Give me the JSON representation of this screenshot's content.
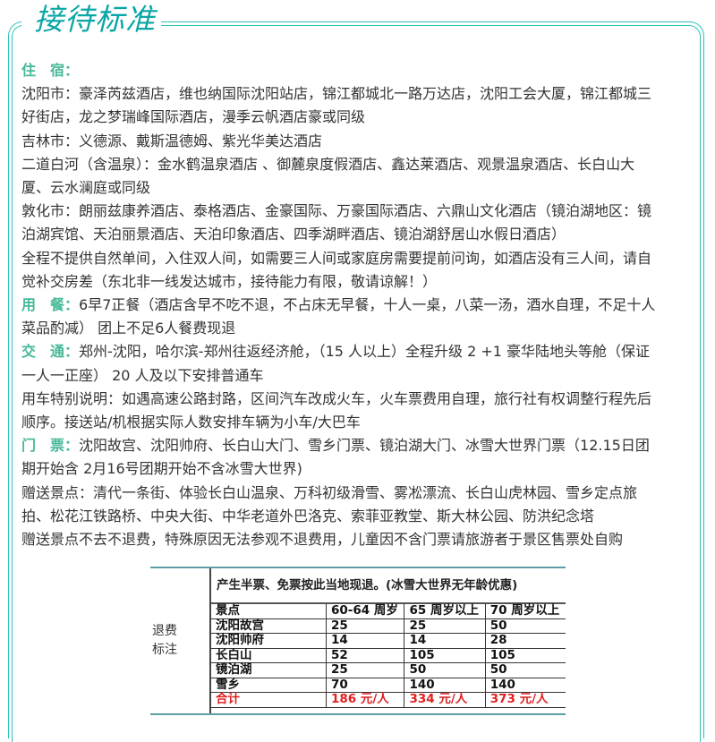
{
  "title": "接待标准",
  "colors": {
    "accent": "#0aa6a6",
    "label": "#47b99a",
    "frame": "#2cc3b8",
    "total": "#e02020"
  },
  "sections": [
    {
      "label": "住　宿：",
      "lines": []
    },
    {
      "label": "",
      "lines": [
        "沈阳市：豪泽芮兹酒店，维也纳国际沈阳站店，锦江都城北一路万达店，沈阳工会大厦，锦江都城三",
        "好街店，龙之梦瑞峰国际酒店，漫季云帆酒店豪或同级"
      ]
    },
    {
      "label": "",
      "lines": [
        "吉林市：义德源、戴斯温德姆、紫光华美达酒店"
      ]
    },
    {
      "label": "",
      "lines": [
        "二道白河（含温泉）：金水鹤温泉酒店 、御麓泉度假酒店、鑫达莱酒店、观景温泉酒店、长白山大",
        "厦、云水澜庭或同级"
      ]
    },
    {
      "label": "",
      "lines": [
        "敦化市：朗丽兹康养酒店、泰格酒店、金豪国际、万豪国际酒店、六鼎山文化酒店（镜泊湖地区：镜",
        "泊湖宾馆、天泊丽景酒店、天泊印象酒店、四季湖畔酒店、镜泊湖舒居山水假日酒店）"
      ]
    },
    {
      "label": "",
      "lines": [
        "全程不提供自然单间，入住双人间，如需要三人间或家庭房需要提前问询，如酒店没有三人间，请自",
        "觉补交房差（东北非一线发达城市，接待能力有限，敬请谅解！）"
      ]
    },
    {
      "label": "用　餐：",
      "lines": [
        "6早7正餐（酒店含早不吃不退，不占床无早餐，十人一桌，八菜一汤，酒水自理，不足十人",
        "菜品酌减） 团上不足6人餐费现退"
      ]
    },
    {
      "label": "交　通：",
      "lines": [
        "郑州-沈阳，哈尔滨-郑州往返经济舱，（15 人以上）全程升级 2 +1 豪华陆地头等舱（保证",
        "一人一正座） 20 人及以下安排普通车"
      ]
    },
    {
      "label": "",
      "lines": [
        "用车特别说明：如遇高速公路封路，区间汽车改成火车，火车票费用自理，旅行社有权调整行程先后",
        "顺序。接送站/机根据实际人数安排车辆为小车/大巴车"
      ]
    },
    {
      "label": "门　票：",
      "lines": [
        "沈阳故宫、沈阳帅府、长白山大门、雪乡门票、镜泊湖大门、冰雪大世界门票（12.15日团",
        "期开始含 2月16号团期开始不含冰雪大世界)"
      ]
    },
    {
      "label": "",
      "lines": [
        "赠送景点：清代一条街、体验长白山温泉、万科初级滑雪、雾凇漂流、长白山虎林园、雪乡定点旅",
        "拍、松花江铁路桥、中央大街、中华老道外巴洛克、索菲亚教堂、斯大林公园、防洪纪念塔"
      ]
    },
    {
      "label": "",
      "lines": [
        "赠送景点不去不退费，特殊原因无法参观不退费用，儿童因不含门票请旅游者于景区售票处自购"
      ]
    }
  ],
  "refund_table": {
    "side_label": [
      "退费",
      "标注"
    ],
    "note": "产生半票、免票按此当地现退。(冰雪大世界无年龄优惠)",
    "headers": [
      "景点",
      "60-64 周岁",
      "65 周岁以上",
      "70 周岁以上"
    ],
    "rows": [
      [
        "沈阳故宫",
        "25",
        "25",
        "50"
      ],
      [
        "沈阳帅府",
        "14",
        "14",
        "28"
      ],
      [
        "长白山",
        "52",
        "105",
        "105"
      ],
      [
        "镜泊湖",
        "25",
        "50",
        "50"
      ],
      [
        "雪乡",
        "70",
        "140",
        "140"
      ]
    ],
    "total": [
      "合计",
      "186 元/人",
      "334 元/人",
      "373 元/人"
    ]
  }
}
